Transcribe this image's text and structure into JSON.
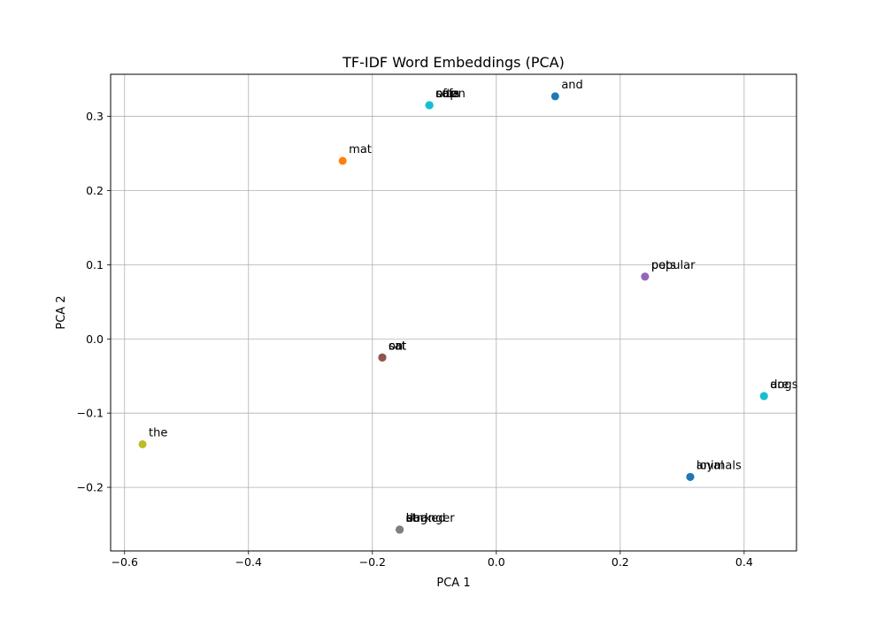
{
  "chart_data": {
    "type": "scatter",
    "title": "TF-IDF Word Embeddings (PCA)",
    "xlabel": "PCA 1",
    "ylabel": "PCA 2",
    "xlim": [
      -0.6225,
      0.4845
    ],
    "ylim": [
      -0.2857,
      0.3567
    ],
    "xticks": [
      -0.6,
      -0.4,
      -0.2,
      0.0,
      0.2,
      0.4
    ],
    "xtick_labels": [
      "−0.6",
      "−0.4",
      "−0.2",
      "0.0",
      "0.2",
      "0.4"
    ],
    "yticks": [
      -0.2,
      -0.1,
      0.0,
      0.1,
      0.2,
      0.3
    ],
    "ytick_labels": [
      "−0.2",
      "−0.1",
      "0.0",
      "0.1",
      "0.2",
      "0.3"
    ],
    "grid": true,
    "points": [
      {
        "word": "and",
        "x": 0.095,
        "y": 0.327,
        "color": "#1f77b4"
      },
      {
        "word": "animals",
        "x": 0.313,
        "y": -0.186,
        "color": "#1f77b4"
      },
      {
        "word": "loyal",
        "x": 0.313,
        "y": -0.186,
        "color": "#1f77b4"
      },
      {
        "word": "are",
        "x": 0.432,
        "y": -0.077,
        "color": "#17becf"
      },
      {
        "word": "dogs",
        "x": 0.432,
        "y": -0.077,
        "color": "#17becf"
      },
      {
        "word": "mat",
        "x": -0.248,
        "y": 0.24,
        "color": "#ff7f0e"
      },
      {
        "word": "pets",
        "x": 0.24,
        "y": 0.084,
        "color": "#9467bd"
      },
      {
        "word": "popular",
        "x": 0.24,
        "y": 0.084,
        "color": "#9467bd"
      },
      {
        "word": "cat",
        "x": -0.184,
        "y": -0.025,
        "color": "#8c564b"
      },
      {
        "word": "on",
        "x": -0.184,
        "y": -0.025,
        "color": "#8c564b"
      },
      {
        "word": "sat",
        "x": -0.184,
        "y": -0.025,
        "color": "#8c564b"
      },
      {
        "word": "barked",
        "x": -0.156,
        "y": -0.257,
        "color": "#7f7f7f"
      },
      {
        "word": "at",
        "x": -0.156,
        "y": -0.257,
        "color": "#7f7f7f"
      },
      {
        "word": "dog",
        "x": -0.156,
        "y": -0.257,
        "color": "#7f7f7f"
      },
      {
        "word": "stranger",
        "x": -0.156,
        "y": -0.257,
        "color": "#7f7f7f"
      },
      {
        "word": "the",
        "x": -0.571,
        "y": -0.142,
        "color": "#bcbd22"
      },
      {
        "word": "cats",
        "x": -0.108,
        "y": 0.315,
        "color": "#17becf"
      },
      {
        "word": "often",
        "x": -0.108,
        "y": 0.315,
        "color": "#17becf"
      },
      {
        "word": "nap",
        "x": -0.108,
        "y": 0.315,
        "color": "#17becf"
      },
      {
        "word": "sofa",
        "x": -0.108,
        "y": 0.315,
        "color": "#17becf"
      }
    ]
  }
}
